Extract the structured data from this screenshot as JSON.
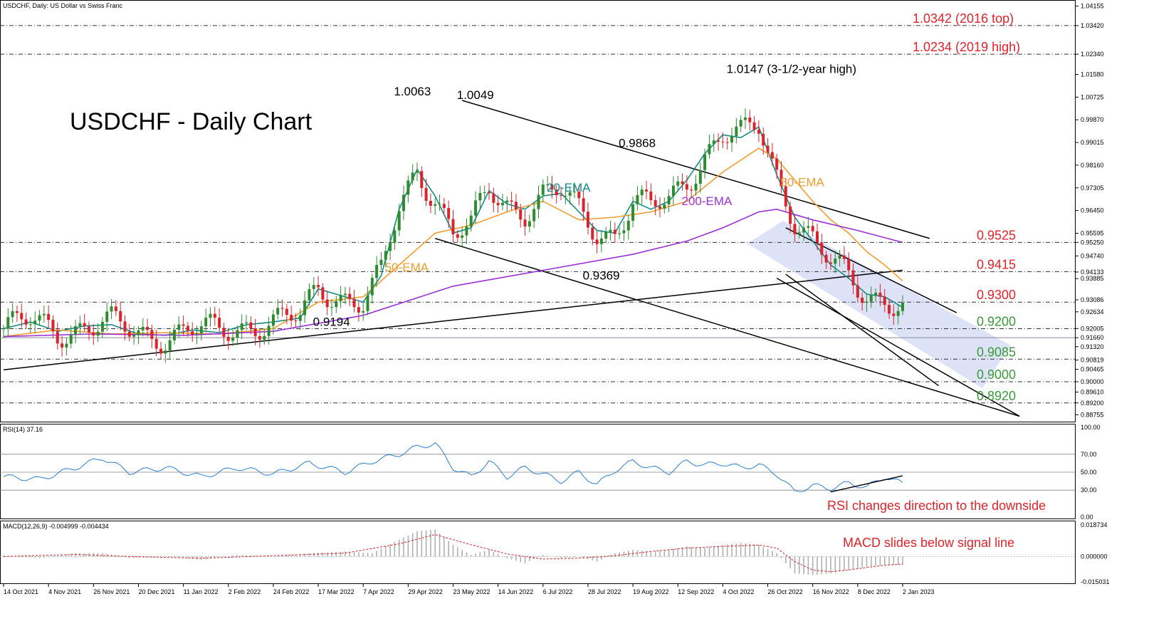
{
  "header": {
    "main": "USDCHF, Daily:  US Dollar vs Swiss Franc",
    "rsi": "RSI(14) 37.16",
    "macd": "MACD(12,26,9) -0.004999 -0.004434"
  },
  "chart_data": [
    {
      "type": "line",
      "title": "USDCHF - Daily Chart",
      "price_scale": [
        "1.04155",
        "1.03420",
        "1.02340",
        "1.01580",
        "1.00725",
        "0.99870",
        "0.99015",
        "0.98160",
        "0.97305",
        "0.96450",
        "0.95595",
        "0.95250",
        "0.94740",
        "0.94133",
        "0.93885",
        "0.93086",
        "0.92634",
        "0.92005",
        "0.91660",
        "0.91320",
        "0.90819",
        "0.90465",
        "0.90000",
        "0.89610",
        "0.89200",
        "0.88755"
      ],
      "ylim": [
        0.8855,
        1.0425
      ],
      "dates": [
        "14 Oct 2021",
        "4 Nov 2021",
        "26 Nov 2021",
        "20 Dec 2021",
        "11 Jan 2022",
        "2 Feb 2022",
        "24 Feb 2022",
        "17 Mar 2022",
        "7 Apr 2022",
        "29 Apr 2022",
        "23 May 2022",
        "14 Jun 2022",
        "6 Jul 2022",
        "28 Jul 2022",
        "19 Aug 2022",
        "12 Sep 2022",
        "4 Oct 2022",
        "26 Oct 2022",
        "16 Nov 2022",
        "8 Dec 2022",
        "2 Jan 2023"
      ],
      "series": [
        {
          "name": "20-EMA",
          "color": "#138a8a",
          "values": [
            [
              0,
              0.92
            ],
            [
              3,
              0.9225
            ],
            [
              6,
              0.919
            ],
            [
              9,
              0.921
            ],
            [
              12,
              0.9215
            ],
            [
              15,
              0.918
            ],
            [
              18,
              0.9175
            ],
            [
              21,
              0.9195
            ],
            [
              24,
              0.9185
            ],
            [
              27,
              0.9215
            ],
            [
              30,
              0.9225
            ],
            [
              33,
              0.924
            ],
            [
              35,
              0.935
            ],
            [
              37,
              0.933
            ],
            [
              40,
              0.93
            ],
            [
              42,
              0.94
            ],
            [
              44,
              0.965
            ],
            [
              46,
              0.98
            ],
            [
              48,
              0.97
            ],
            [
              50,
              0.956
            ],
            [
              52,
              0.958
            ],
            [
              54,
              0.972
            ],
            [
              56,
              0.967
            ],
            [
              58,
              0.965
            ],
            [
              60,
              0.97
            ],
            [
              62,
              0.971
            ],
            [
              64,
              0.964
            ],
            [
              66,
              0.957
            ],
            [
              68,
              0.956
            ],
            [
              70,
              0.968
            ],
            [
              72,
              0.965
            ],
            [
              74,
              0.968
            ],
            [
              76,
              0.976
            ],
            [
              78,
              0.986
            ],
            [
              80,
              0.993
            ],
            [
              82,
              0.992
            ],
            [
              84,
              0.996
            ],
            [
              86,
              0.978
            ],
            [
              88,
              0.962
            ],
            [
              90,
              0.953
            ],
            [
              92,
              0.944
            ],
            [
              94,
              0.939
            ],
            [
              96,
              0.933
            ],
            [
              98,
              0.932
            ],
            [
              100,
              0.928
            ]
          ]
        },
        {
          "name": "50-EMA",
          "color": "#f39c2b",
          "values": [
            [
              0,
              0.917
            ],
            [
              6,
              0.9195
            ],
            [
              12,
              0.918
            ],
            [
              18,
              0.9185
            ],
            [
              24,
              0.918
            ],
            [
              30,
              0.92
            ],
            [
              35,
              0.93
            ],
            [
              40,
              0.932
            ],
            [
              44,
              0.944
            ],
            [
              48,
              0.956
            ],
            [
              52,
              0.959
            ],
            [
              56,
              0.964
            ],
            [
              60,
              0.968
            ],
            [
              64,
              0.961
            ],
            [
              68,
              0.962
            ],
            [
              72,
              0.964
            ],
            [
              76,
              0.968
            ],
            [
              80,
              0.979
            ],
            [
              84,
              0.988
            ],
            [
              86,
              0.984
            ],
            [
              88,
              0.976
            ],
            [
              90,
              0.968
            ],
            [
              92,
              0.961
            ],
            [
              94,
              0.956
            ],
            [
              96,
              0.949
            ],
            [
              98,
              0.944
            ],
            [
              100,
              0.938
            ]
          ]
        },
        {
          "name": "200-EMA",
          "color": "#9b30d9",
          "values": [
            [
              0,
              0.917
            ],
            [
              10,
              0.918
            ],
            [
              20,
              0.9175
            ],
            [
              30,
              0.919
            ],
            [
              40,
              0.925
            ],
            [
              50,
              0.936
            ],
            [
              60,
              0.942
            ],
            [
              70,
              0.948
            ],
            [
              76,
              0.953
            ],
            [
              80,
              0.958
            ],
            [
              84,
              0.964
            ],
            [
              86,
              0.965
            ],
            [
              90,
              0.961
            ],
            [
              95,
              0.957
            ],
            [
              100,
              0.9525
            ]
          ]
        }
      ],
      "annotations": [
        {
          "text": "1.0063",
          "date_index": 45,
          "price": 1.0063,
          "color": "#000000"
        },
        {
          "text": "1.0049",
          "date_index": 52,
          "price": 1.0049,
          "color": "#000000"
        },
        {
          "text": "1.0147 (3-1/2-year high)",
          "date_index": 82,
          "price": 1.0147,
          "color": "#000000"
        },
        {
          "text": "0.9868",
          "date_index": 70,
          "price": 0.9868,
          "color": "#000000"
        },
        {
          "text": "0.9369",
          "date_index": 66,
          "price": 0.9369,
          "color": "#000000"
        },
        {
          "text": "0.9194",
          "date_index": 36,
          "price": 0.9194,
          "color": "#000000"
        },
        {
          "text": "20-EMA",
          "date_index": 62,
          "price": 0.97,
          "color": "#138a8a"
        },
        {
          "text": "50-EMA",
          "date_index": 88,
          "price": 0.972,
          "color": "#f39c2b"
        },
        {
          "text": "50-EMA",
          "date_index": 44,
          "price": 0.94,
          "color": "#f39c2b"
        },
        {
          "text": "200-EMA",
          "date_index": 77,
          "price": 0.965,
          "color": "#9b30d9"
        }
      ],
      "levels": [
        {
          "price": 1.0342,
          "label": "1.0342 (2016 top)",
          "color": "#e3222a"
        },
        {
          "price": 1.0234,
          "label": "1.0234 (2019 high)",
          "color": "#e3222a"
        },
        {
          "price": 0.9525,
          "label": "0.9525",
          "color": "#e3222a"
        },
        {
          "price": 0.9415,
          "label": "0.9415",
          "color": "#e3222a"
        },
        {
          "price": 0.93,
          "label": "0.9300",
          "color": "#e3222a"
        },
        {
          "price": 0.92,
          "label": "0.9200",
          "color": "#3a9a3a"
        },
        {
          "price": 0.9085,
          "label": "0.9085",
          "color": "#3a9a3a"
        },
        {
          "price": 0.9,
          "label": "0.9000",
          "color": "#3a9a3a"
        },
        {
          "price": 0.892,
          "label": "0.8920",
          "color": "#3a9a3a"
        }
      ]
    },
    {
      "type": "line",
      "title": "RSI(14) 37.16",
      "ticks": [
        "100.00",
        "70.00",
        "50.00",
        "30.00",
        "0.00"
      ],
      "ylim": [
        0,
        100
      ],
      "series": [
        {
          "color": "#2a7fd4",
          "values": [
            [
              0,
              45
            ],
            [
              4,
              42
            ],
            [
              8,
              55
            ],
            [
              11,
              66
            ],
            [
              14,
              50
            ],
            [
              18,
              55
            ],
            [
              22,
              45
            ],
            [
              26,
              55
            ],
            [
              30,
              48
            ],
            [
              34,
              60
            ],
            [
              38,
              50
            ],
            [
              41,
              62
            ],
            [
              44,
              70
            ],
            [
              46,
              78
            ],
            [
              48,
              82
            ],
            [
              50,
              55
            ],
            [
              52,
              45
            ],
            [
              54,
              62
            ],
            [
              56,
              45
            ],
            [
              58,
              55
            ],
            [
              60,
              48
            ],
            [
              62,
              40
            ],
            [
              64,
              50
            ],
            [
              66,
              36
            ],
            [
              68,
              52
            ],
            [
              70,
              62
            ],
            [
              72,
              55
            ],
            [
              74,
              50
            ],
            [
              76,
              62
            ],
            [
              78,
              58
            ],
            [
              80,
              60
            ],
            [
              82,
              55
            ],
            [
              84,
              58
            ],
            [
              86,
              48
            ],
            [
              88,
              28
            ],
            [
              90,
              35
            ],
            [
              92,
              32
            ],
            [
              94,
              38
            ],
            [
              96,
              33
            ],
            [
              98,
              45
            ],
            [
              100,
              37.16
            ]
          ]
        }
      ],
      "annotation": {
        "text": "RSI changes direction to the downside",
        "color": "#e3222a"
      }
    },
    {
      "type": "bar",
      "title": "MACD(12,26,9) -0.004999 -0.004434",
      "ticks": [
        "0.018734",
        "0.000000",
        "-0.015031"
      ],
      "ylim": [
        -0.015031,
        0.018734
      ],
      "macd": [
        [
          0,
          0.0005
        ],
        [
          4,
          -0.001
        ],
        [
          8,
          0.002
        ],
        [
          11,
          0.002
        ],
        [
          14,
          -0.001
        ],
        [
          18,
          0.0
        ],
        [
          22,
          -0.002
        ],
        [
          26,
          0.001
        ],
        [
          30,
          0.0
        ],
        [
          34,
          0.002
        ],
        [
          38,
          0.003
        ],
        [
          41,
          0.002
        ],
        [
          44,
          0.01
        ],
        [
          46,
          0.015
        ],
        [
          48,
          0.016
        ],
        [
          50,
          0.007
        ],
        [
          52,
          0.001
        ],
        [
          54,
          0.004
        ],
        [
          56,
          -0.001
        ],
        [
          58,
          -0.004
        ],
        [
          60,
          0.001
        ],
        [
          62,
          -0.001
        ],
        [
          64,
          0.0
        ],
        [
          66,
          -0.003
        ],
        [
          68,
          0.002
        ],
        [
          70,
          0.004
        ],
        [
          72,
          0.003
        ],
        [
          74,
          0.004
        ],
        [
          76,
          0.006
        ],
        [
          78,
          0.005
        ],
        [
          80,
          0.007
        ],
        [
          82,
          0.008
        ],
        [
          84,
          0.007
        ],
        [
          86,
          0.002
        ],
        [
          88,
          -0.01
        ],
        [
          90,
          -0.011
        ],
        [
          92,
          -0.01
        ],
        [
          94,
          -0.008
        ],
        [
          96,
          -0.006
        ],
        [
          98,
          -0.005
        ],
        [
          100,
          -0.004999
        ]
      ],
      "signal": [
        [
          0,
          0.0
        ],
        [
          8,
          0.0012
        ],
        [
          14,
          0.0
        ],
        [
          22,
          -0.001
        ],
        [
          30,
          0.0005
        ],
        [
          38,
          0.002
        ],
        [
          44,
          0.0075
        ],
        [
          48,
          0.013
        ],
        [
          52,
          0.007
        ],
        [
          56,
          0.0015
        ],
        [
          60,
          -0.0015
        ],
        [
          64,
          -0.001
        ],
        [
          68,
          0.0005
        ],
        [
          72,
          0.003
        ],
        [
          76,
          0.005
        ],
        [
          80,
          0.006
        ],
        [
          84,
          0.0068
        ],
        [
          86,
          0.005
        ],
        [
          88,
          -0.003
        ],
        [
          90,
          -0.008
        ],
        [
          92,
          -0.009
        ],
        [
          94,
          -0.008
        ],
        [
          96,
          -0.0065
        ],
        [
          98,
          -0.0052
        ],
        [
          100,
          -0.004434
        ]
      ],
      "annotation": {
        "text": "MACD slides below signal line",
        "color": "#e3222a"
      }
    }
  ]
}
